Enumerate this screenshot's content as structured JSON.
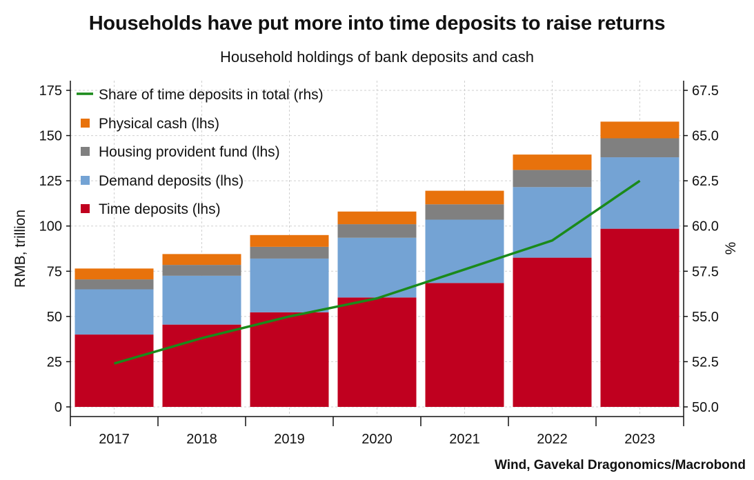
{
  "chart_data": {
    "type": "bar",
    "stacked": true,
    "title": "Households have put more into time deposits to raise returns",
    "subtitle": "Household holdings of bank deposits and cash",
    "source": "Wind, Gavekal Dragonomics/Macrobond",
    "categories": [
      "2017",
      "2018",
      "2019",
      "2020",
      "2021",
      "2022",
      "2023"
    ],
    "ylabel_left": "RMB, trillion",
    "ylabel_right": "%",
    "ylim_left": [
      0,
      175
    ],
    "ylim_right": [
      50.0,
      67.5
    ],
    "yticks_left": [
      "0",
      "25",
      "50",
      "75",
      "100",
      "125",
      "150",
      "175"
    ],
    "yticks_right": [
      "50.0",
      "52.5",
      "55.0",
      "57.5",
      "60.0",
      "62.5",
      "65.0",
      "67.5"
    ],
    "grid": true,
    "legend_position": "top-left",
    "series": [
      {
        "name": "Time deposits (lhs)",
        "color": "#c0001f",
        "axis": "left",
        "values": [
          40.0,
          45.5,
          52.3,
          60.5,
          68.5,
          82.5,
          98.5
        ]
      },
      {
        "name": "Demand deposits (lhs)",
        "color": "#74a3d4",
        "axis": "left",
        "values": [
          25.0,
          27.0,
          29.7,
          33.0,
          35.0,
          39.0,
          39.5
        ]
      },
      {
        "name": "Housing provident fund (lhs)",
        "color": "#808080",
        "axis": "left",
        "values": [
          5.5,
          6.0,
          6.5,
          7.5,
          8.5,
          9.5,
          10.5
        ]
      },
      {
        "name": "Physical cash (lhs)",
        "color": "#e8720c",
        "axis": "left",
        "values": [
          6.0,
          6.0,
          6.5,
          7.0,
          7.5,
          8.5,
          9.2
        ]
      }
    ],
    "line_series": {
      "name": "Share of time deposits in total (rhs)",
      "color": "#1a8a1a",
      "axis": "right",
      "values": [
        52.4,
        53.8,
        55.0,
        56.0,
        57.6,
        59.2,
        62.5
      ]
    },
    "legend_order": [
      "Share of time deposits in total (rhs)",
      "Physical cash (lhs)",
      "Housing provident fund (lhs)",
      "Demand deposits (lhs)",
      "Time deposits (lhs)"
    ]
  }
}
